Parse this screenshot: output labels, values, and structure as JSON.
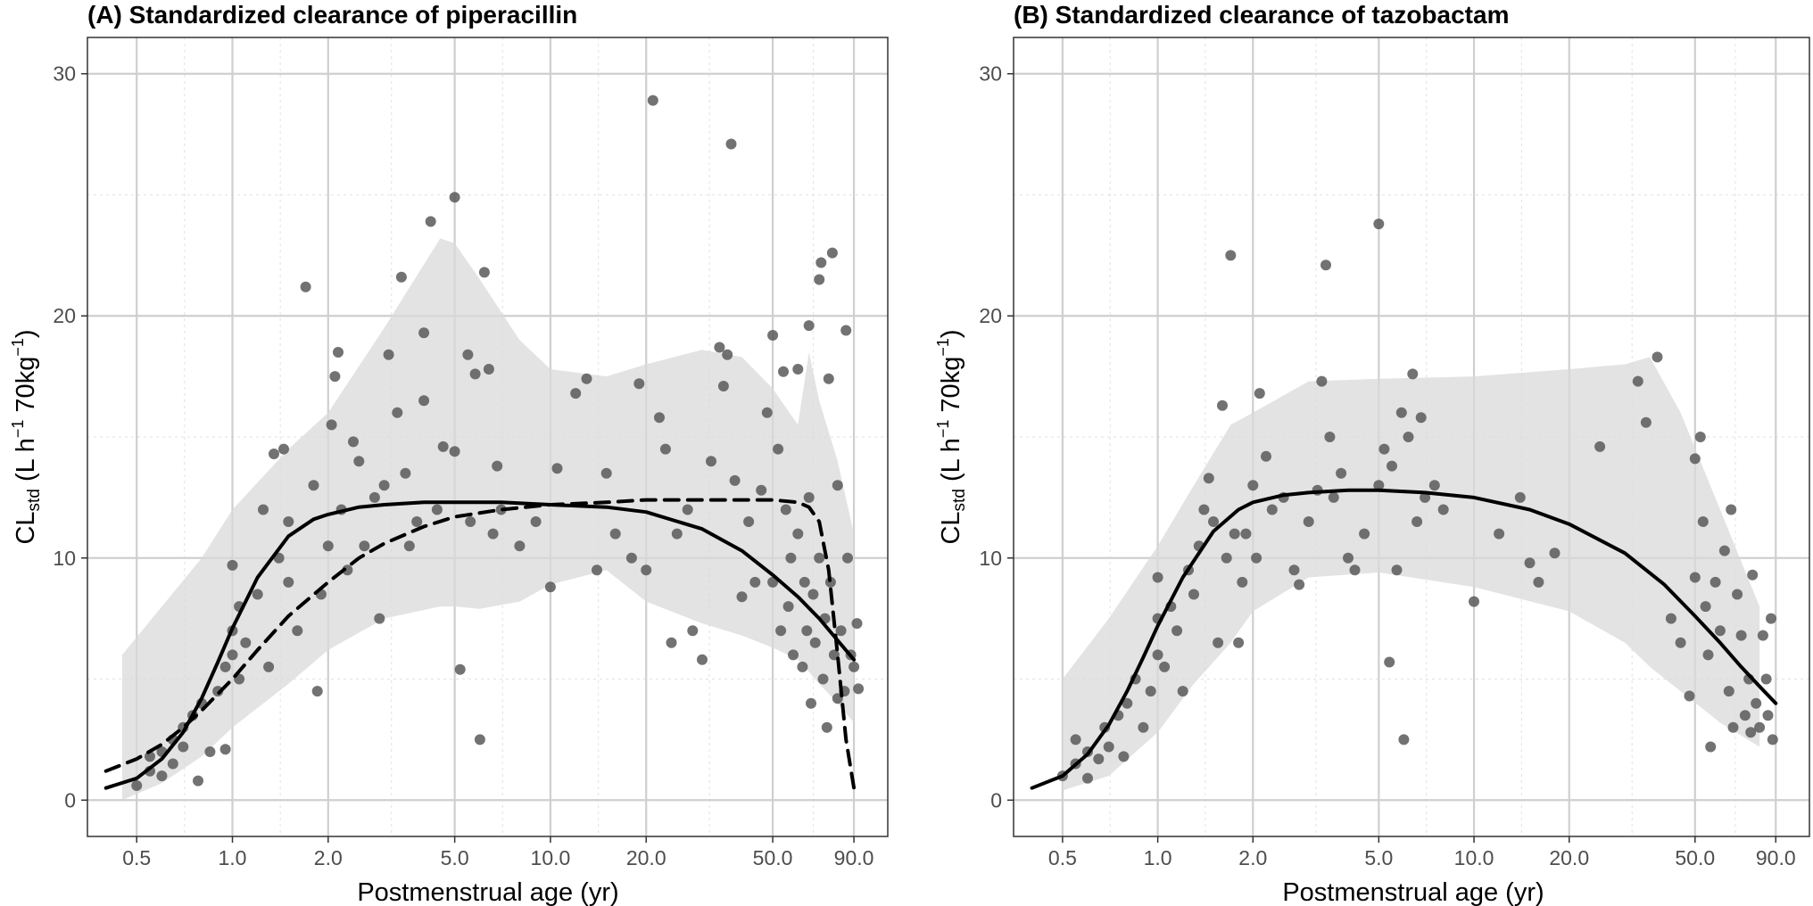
{
  "chart_data": [
    {
      "type": "scatter",
      "title": "(A) Standardized clearance of piperacillin",
      "xlabel": "Postmenstrual age (yr)",
      "ylabel_main": "CL",
      "ylabel_sub": "std",
      "ylabel_pre": " (L h",
      "ylabel_sup1": "−1",
      "ylabel_mid": " 70kg",
      "ylabel_sup2": "−1",
      "ylabel_post": ")",
      "x_scale": "log",
      "xlim": [
        0.35,
        115
      ],
      "ylim": [
        -1.5,
        31.5
      ],
      "x_ticks": [
        0.5,
        1.0,
        2.0,
        5.0,
        10.0,
        20.0,
        50.0,
        90.0
      ],
      "x_tick_labels": [
        "0.5",
        "1.0",
        "2.0",
        "5.0",
        "10.0",
        "20.0",
        "50.0",
        "90.0"
      ],
      "y_ticks": [
        0,
        10,
        20,
        30
      ],
      "y_tick_labels": [
        "0",
        "10",
        "20",
        "30"
      ],
      "grid": true,
      "ribbon": {
        "x": [
          0.45,
          0.6,
          0.8,
          1.0,
          1.5,
          2.0,
          3.0,
          4.5,
          5.0,
          6.0,
          8.0,
          10.0,
          15.0,
          20.0,
          30.0,
          40.0,
          50.0,
          60.0,
          65.0,
          70.0,
          80.0,
          90.0
        ],
        "upper": [
          6.0,
          8.0,
          10.0,
          12.0,
          14.5,
          16.0,
          19.5,
          23.2,
          23.0,
          21.5,
          19.0,
          17.8,
          17.5,
          18.0,
          18.6,
          18.3,
          17.0,
          15.5,
          18.5,
          16.5,
          14.0,
          11.0
        ],
        "lower": [
          0.0,
          0.7,
          1.8,
          3.0,
          4.8,
          6.2,
          7.5,
          8.0,
          8.0,
          7.9,
          8.2,
          8.9,
          9.5,
          8.2,
          7.3,
          6.8,
          6.3,
          5.8,
          5.3,
          4.8,
          4.0,
          3.2
        ]
      },
      "curves": [
        {
          "style": "solid",
          "x": [
            0.4,
            0.5,
            0.6,
            0.7,
            0.8,
            0.9,
            1.0,
            1.2,
            1.5,
            1.8,
            2.0,
            2.5,
            3.0,
            4.0,
            5.0,
            7.0,
            10.0,
            15.0,
            20.0,
            30.0,
            40.0,
            50.0,
            60.0,
            70.0,
            80.0,
            90.0
          ],
          "y": [
            0.5,
            0.9,
            1.7,
            2.8,
            4.2,
            5.7,
            7.1,
            9.2,
            10.9,
            11.6,
            11.8,
            12.1,
            12.2,
            12.3,
            12.3,
            12.3,
            12.2,
            12.1,
            11.9,
            11.2,
            10.3,
            9.3,
            8.4,
            7.5,
            6.6,
            5.8
          ]
        },
        {
          "style": "dashed",
          "x": [
            0.4,
            0.5,
            0.6,
            0.7,
            0.8,
            1.0,
            1.2,
            1.5,
            2.0,
            2.5,
            3.0,
            4.0,
            5.0,
            7.0,
            10.0,
            15.0,
            20.0,
            30.0,
            40.0,
            50.0,
            60.0,
            65.0,
            70.0,
            75.0,
            80.0,
            85.0,
            90.0
          ],
          "y": [
            1.2,
            1.7,
            2.3,
            3.0,
            3.7,
            5.0,
            6.2,
            7.6,
            9.0,
            10.0,
            10.6,
            11.3,
            11.7,
            12.0,
            12.2,
            12.3,
            12.4,
            12.4,
            12.4,
            12.4,
            12.3,
            12.1,
            11.5,
            9.5,
            6.0,
            2.5,
            0.5
          ]
        }
      ],
      "points": [
        [
          0.5,
          0.6
        ],
        [
          0.55,
          1.2
        ],
        [
          0.55,
          1.8
        ],
        [
          0.6,
          1.0
        ],
        [
          0.6,
          2.0
        ],
        [
          0.65,
          1.5
        ],
        [
          0.65,
          2.5
        ],
        [
          0.7,
          3.0
        ],
        [
          0.7,
          2.2
        ],
        [
          0.75,
          3.5
        ],
        [
          0.78,
          0.8
        ],
        [
          0.8,
          4.0
        ],
        [
          0.85,
          2.0
        ],
        [
          0.9,
          4.5
        ],
        [
          0.95,
          5.5
        ],
        [
          0.95,
          2.1
        ],
        [
          1.0,
          6.0
        ],
        [
          1.0,
          7.0
        ],
        [
          1.0,
          9.7
        ],
        [
          1.05,
          5.0
        ],
        [
          1.05,
          8.0
        ],
        [
          1.1,
          6.5
        ],
        [
          1.2,
          8.5
        ],
        [
          1.25,
          12.0
        ],
        [
          1.3,
          5.5
        ],
        [
          1.35,
          14.3
        ],
        [
          1.4,
          10.0
        ],
        [
          1.45,
          14.5
        ],
        [
          1.5,
          11.5
        ],
        [
          1.5,
          9.0
        ],
        [
          1.6,
          7.0
        ],
        [
          1.7,
          21.2
        ],
        [
          1.8,
          13.0
        ],
        [
          1.85,
          4.5
        ],
        [
          1.9,
          8.5
        ],
        [
          2.0,
          10.5
        ],
        [
          2.05,
          15.5
        ],
        [
          2.1,
          17.5
        ],
        [
          2.15,
          18.5
        ],
        [
          2.2,
          12.0
        ],
        [
          2.3,
          9.5
        ],
        [
          2.4,
          14.8
        ],
        [
          2.5,
          14.0
        ],
        [
          2.6,
          10.5
        ],
        [
          2.8,
          12.5
        ],
        [
          2.9,
          7.5
        ],
        [
          3.0,
          13.0
        ],
        [
          3.1,
          18.4
        ],
        [
          3.3,
          16.0
        ],
        [
          3.4,
          21.6
        ],
        [
          3.5,
          13.5
        ],
        [
          3.6,
          10.5
        ],
        [
          3.8,
          11.5
        ],
        [
          4.0,
          16.5
        ],
        [
          4.0,
          19.3
        ],
        [
          4.2,
          23.9
        ],
        [
          4.4,
          12.0
        ],
        [
          4.6,
          14.6
        ],
        [
          5.0,
          24.9
        ],
        [
          5.0,
          14.4
        ],
        [
          5.2,
          5.4
        ],
        [
          5.5,
          18.4
        ],
        [
          5.6,
          11.5
        ],
        [
          5.8,
          17.6
        ],
        [
          6.0,
          2.5
        ],
        [
          6.2,
          21.8
        ],
        [
          6.4,
          17.8
        ],
        [
          6.6,
          11.0
        ],
        [
          6.8,
          13.8
        ],
        [
          7.0,
          12.0
        ],
        [
          8.0,
          10.5
        ],
        [
          9.0,
          11.5
        ],
        [
          10.0,
          8.8
        ],
        [
          10.5,
          13.7
        ],
        [
          12.0,
          16.8
        ],
        [
          13.0,
          17.4
        ],
        [
          14.0,
          9.5
        ],
        [
          15.0,
          13.5
        ],
        [
          16.0,
          11.0
        ],
        [
          18.0,
          10.0
        ],
        [
          19.0,
          17.2
        ],
        [
          20.0,
          9.5
        ],
        [
          21.0,
          28.9
        ],
        [
          22.0,
          15.8
        ],
        [
          23.0,
          14.5
        ],
        [
          24.0,
          6.5
        ],
        [
          25.0,
          11.0
        ],
        [
          27.0,
          12.0
        ],
        [
          28.0,
          7.0
        ],
        [
          30.0,
          5.8
        ],
        [
          32.0,
          14.0
        ],
        [
          34.0,
          18.7
        ],
        [
          35.0,
          17.1
        ],
        [
          36.0,
          18.4
        ],
        [
          37.0,
          27.1
        ],
        [
          38.0,
          13.2
        ],
        [
          40.0,
          8.4
        ],
        [
          42.0,
          11.5
        ],
        [
          44.0,
          9.0
        ],
        [
          46.0,
          12.8
        ],
        [
          48.0,
          16.0
        ],
        [
          50.0,
          19.2
        ],
        [
          50.0,
          9.0
        ],
        [
          52.0,
          14.5
        ],
        [
          53.0,
          7.0
        ],
        [
          54.0,
          17.7
        ],
        [
          55.0,
          12.0
        ],
        [
          56.0,
          8.0
        ],
        [
          57.0,
          10.0
        ],
        [
          58.0,
          6.0
        ],
        [
          60.0,
          17.8
        ],
        [
          60.0,
          11.0
        ],
        [
          62.0,
          5.5
        ],
        [
          63.0,
          9.0
        ],
        [
          64.0,
          7.0
        ],
        [
          65.0,
          19.6
        ],
        [
          65.0,
          12.5
        ],
        [
          66.0,
          4.0
        ],
        [
          67.0,
          8.5
        ],
        [
          68.0,
          6.5
        ],
        [
          70.0,
          21.5
        ],
        [
          70.0,
          10.0
        ],
        [
          71.0,
          22.2
        ],
        [
          72.0,
          5.0
        ],
        [
          73.0,
          7.5
        ],
        [
          74.0,
          3.0
        ],
        [
          75.0,
          17.4
        ],
        [
          76.0,
          9.0
        ],
        [
          77.0,
          22.6
        ],
        [
          78.0,
          6.0
        ],
        [
          80.0,
          4.2
        ],
        [
          80.0,
          13.0
        ],
        [
          82.0,
          7.0
        ],
        [
          84.0,
          4.5
        ],
        [
          85.0,
          19.4
        ],
        [
          86.0,
          10.0
        ],
        [
          88.0,
          6.0
        ],
        [
          90.0,
          5.5
        ],
        [
          92.0,
          7.3
        ],
        [
          93.0,
          4.6
        ]
      ]
    },
    {
      "type": "scatter",
      "title": "(B) Standardized clearance of tazobactam",
      "xlabel": "Postmenstrual age (yr)",
      "ylabel_main": "CL",
      "ylabel_sub": "std",
      "ylabel_pre": " (L h",
      "ylabel_sup1": "−1",
      "ylabel_mid": " 70kg",
      "ylabel_sup2": "−1",
      "ylabel_post": ")",
      "x_scale": "log",
      "xlim": [
        0.35,
        115
      ],
      "ylim": [
        -1.5,
        31.5
      ],
      "x_ticks": [
        0.5,
        1.0,
        2.0,
        5.0,
        10.0,
        20.0,
        50.0,
        90.0
      ],
      "x_tick_labels": [
        "0.5",
        "1.0",
        "2.0",
        "5.0",
        "10.0",
        "20.0",
        "50.0",
        "90.0"
      ],
      "y_ticks": [
        0,
        10,
        20,
        30
      ],
      "y_tick_labels": [
        "0",
        "10",
        "20",
        "30"
      ],
      "grid": true,
      "ribbon": {
        "x": [
          0.5,
          0.7,
          1.0,
          1.3,
          1.7,
          2.0,
          3.0,
          5.0,
          10.0,
          20.0,
          30.0,
          36.0,
          45.0,
          60.0,
          80.0
        ],
        "upper": [
          5.0,
          7.5,
          10.5,
          13.0,
          15.5,
          16.0,
          17.3,
          17.4,
          17.5,
          17.8,
          18.0,
          18.3,
          16.0,
          12.0,
          8.0
        ],
        "lower": [
          0.4,
          1.0,
          2.8,
          4.8,
          6.5,
          7.8,
          9.2,
          9.4,
          8.8,
          7.8,
          6.5,
          5.5,
          4.5,
          3.2,
          2.2
        ]
      },
      "curves": [
        {
          "style": "solid",
          "x": [
            0.4,
            0.5,
            0.6,
            0.7,
            0.8,
            0.9,
            1.0,
            1.2,
            1.5,
            1.8,
            2.0,
            2.5,
            3.0,
            4.0,
            5.0,
            7.0,
            10.0,
            15.0,
            20.0,
            30.0,
            40.0,
            50.0,
            60.0,
            70.0,
            80.0,
            90.0
          ],
          "y": [
            0.5,
            1.0,
            1.9,
            3.1,
            4.5,
            5.9,
            7.2,
            9.2,
            11.1,
            12.0,
            12.3,
            12.6,
            12.7,
            12.8,
            12.8,
            12.7,
            12.5,
            12.0,
            11.4,
            10.2,
            8.9,
            7.6,
            6.5,
            5.5,
            4.7,
            4.0
          ]
        }
      ],
      "points": [
        [
          0.5,
          1.0
        ],
        [
          0.55,
          1.5
        ],
        [
          0.55,
          2.5
        ],
        [
          0.6,
          0.9
        ],
        [
          0.6,
          2.0
        ],
        [
          0.65,
          1.7
        ],
        [
          0.68,
          3.0
        ],
        [
          0.7,
          2.2
        ],
        [
          0.75,
          3.5
        ],
        [
          0.78,
          1.8
        ],
        [
          0.8,
          4.0
        ],
        [
          0.85,
          5.0
        ],
        [
          0.9,
          3.0
        ],
        [
          0.95,
          4.5
        ],
        [
          1.0,
          6.0
        ],
        [
          1.0,
          7.5
        ],
        [
          1.0,
          9.2
        ],
        [
          1.05,
          5.5
        ],
        [
          1.1,
          8.0
        ],
        [
          1.15,
          7.0
        ],
        [
          1.2,
          4.5
        ],
        [
          1.25,
          9.5
        ],
        [
          1.3,
          8.5
        ],
        [
          1.35,
          10.5
        ],
        [
          1.4,
          12.0
        ],
        [
          1.45,
          13.3
        ],
        [
          1.5,
          11.5
        ],
        [
          1.55,
          6.5
        ],
        [
          1.6,
          16.3
        ],
        [
          1.65,
          10.0
        ],
        [
          1.7,
          22.5
        ],
        [
          1.75,
          11.0
        ],
        [
          1.8,
          6.5
        ],
        [
          1.85,
          9.0
        ],
        [
          1.9,
          11.0
        ],
        [
          2.0,
          13.0
        ],
        [
          2.05,
          10.0
        ],
        [
          2.1,
          16.8
        ],
        [
          2.2,
          14.2
        ],
        [
          2.3,
          12.0
        ],
        [
          2.5,
          12.5
        ],
        [
          2.7,
          9.5
        ],
        [
          2.8,
          8.9
        ],
        [
          3.0,
          11.5
        ],
        [
          3.2,
          12.8
        ],
        [
          3.3,
          17.3
        ],
        [
          3.4,
          22.1
        ],
        [
          3.5,
          15.0
        ],
        [
          3.6,
          12.5
        ],
        [
          3.8,
          13.5
        ],
        [
          4.0,
          10.0
        ],
        [
          4.2,
          9.5
        ],
        [
          4.5,
          11.0
        ],
        [
          5.0,
          23.8
        ],
        [
          5.0,
          13.0
        ],
        [
          5.2,
          14.5
        ],
        [
          5.4,
          5.7
        ],
        [
          5.5,
          13.8
        ],
        [
          5.7,
          9.5
        ],
        [
          5.9,
          16.0
        ],
        [
          6.0,
          2.5
        ],
        [
          6.2,
          15.0
        ],
        [
          6.4,
          17.6
        ],
        [
          6.6,
          11.5
        ],
        [
          6.8,
          15.8
        ],
        [
          7.0,
          12.5
        ],
        [
          7.5,
          13.0
        ],
        [
          8.0,
          12.0
        ],
        [
          10.0,
          8.2
        ],
        [
          12.0,
          11.0
        ],
        [
          14.0,
          12.5
        ],
        [
          15.0,
          9.8
        ],
        [
          16.0,
          9.0
        ],
        [
          18.0,
          10.2
        ],
        [
          25.0,
          14.6
        ],
        [
          33.0,
          17.3
        ],
        [
          35.0,
          15.6
        ],
        [
          38.0,
          18.3
        ],
        [
          42.0,
          7.5
        ],
        [
          45.0,
          6.5
        ],
        [
          48.0,
          4.3
        ],
        [
          50.0,
          14.1
        ],
        [
          50.0,
          9.2
        ],
        [
          52.0,
          15.0
        ],
        [
          53.0,
          11.5
        ],
        [
          54.0,
          8.0
        ],
        [
          55.0,
          6.0
        ],
        [
          56.0,
          2.2
        ],
        [
          58.0,
          9.0
        ],
        [
          60.0,
          7.0
        ],
        [
          62.0,
          10.3
        ],
        [
          64.0,
          4.5
        ],
        [
          65.0,
          12.0
        ],
        [
          66.0,
          3.0
        ],
        [
          68.0,
          8.5
        ],
        [
          70.0,
          6.8
        ],
        [
          72.0,
          3.5
        ],
        [
          74.0,
          5.0
        ],
        [
          75.0,
          2.8
        ],
        [
          76.0,
          9.3
        ],
        [
          78.0,
          4.0
        ],
        [
          80.0,
          3.0
        ],
        [
          82.0,
          6.8
        ],
        [
          84.0,
          5.0
        ],
        [
          85.0,
          3.5
        ],
        [
          87.0,
          7.5
        ],
        [
          88.0,
          2.5
        ]
      ]
    }
  ]
}
